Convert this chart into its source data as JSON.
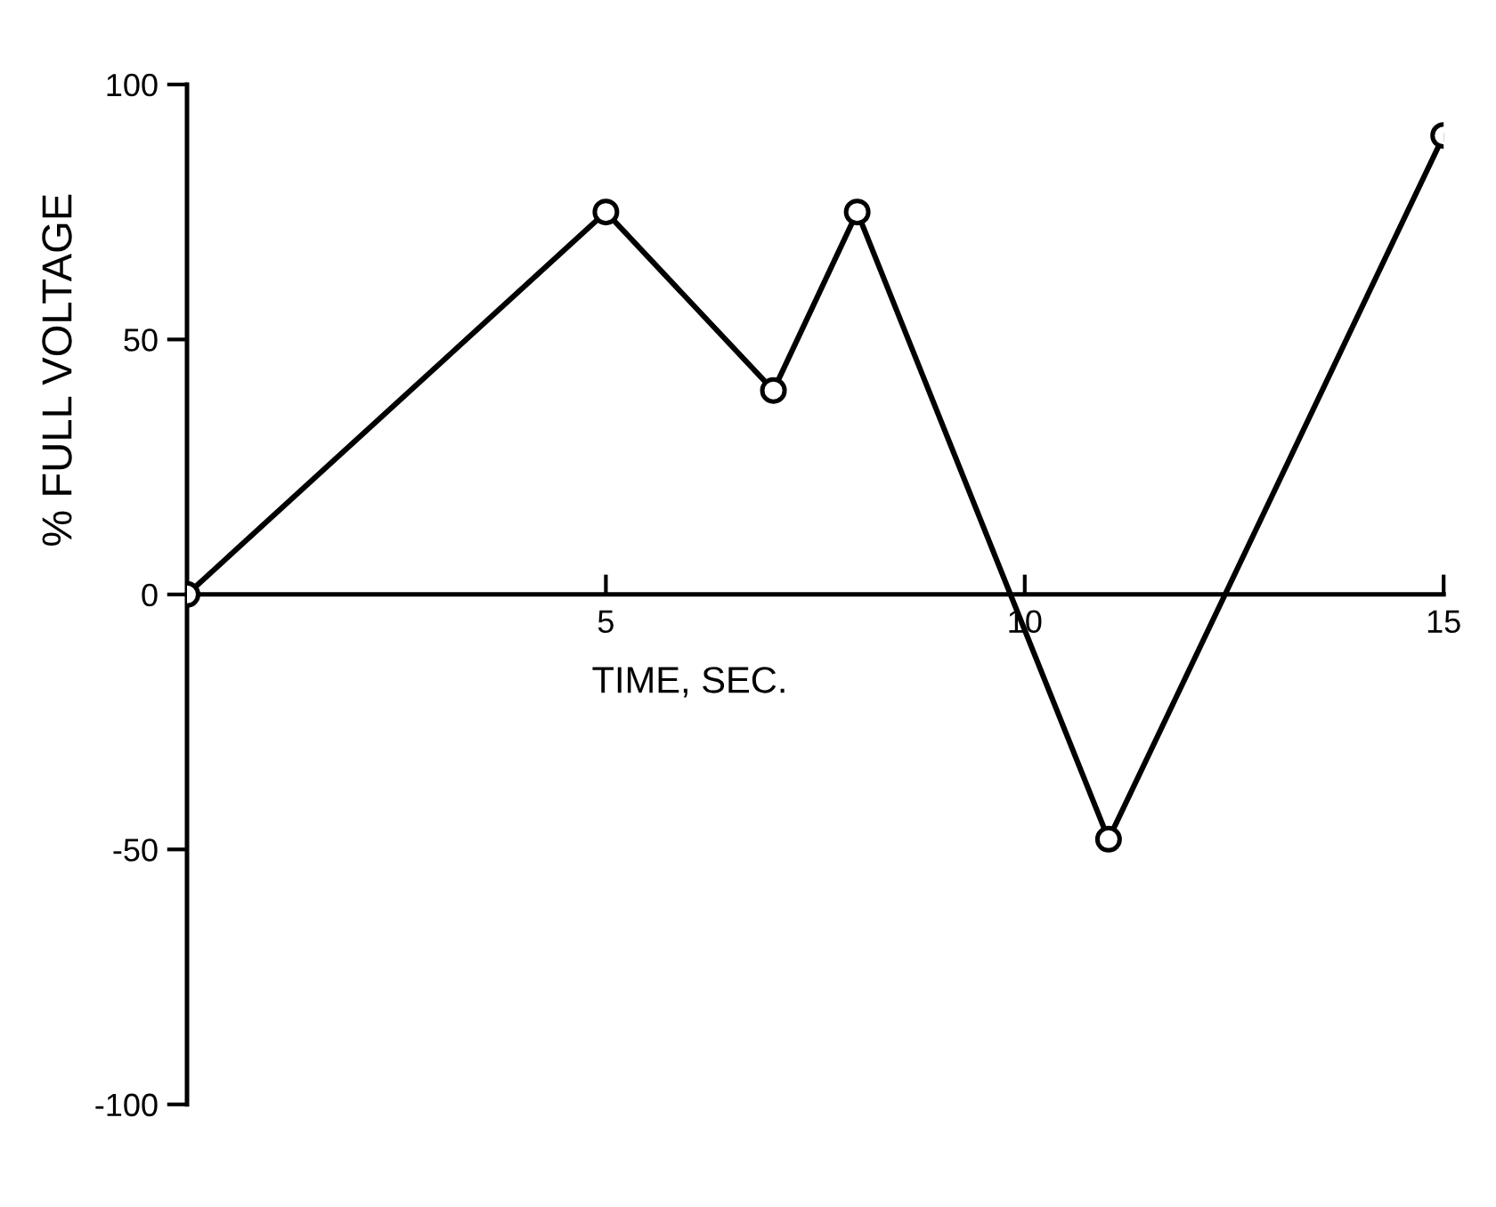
{
  "chart_data": {
    "type": "line",
    "xlabel": "TIME, SEC.",
    "ylabel": "% FULL VOLTAGE",
    "x": [
      0,
      5,
      7,
      8,
      11,
      15
    ],
    "series": [
      {
        "color": "#000000",
        "values": [
          0,
          75,
          40,
          75,
          -48,
          90
        ]
      }
    ],
    "xlim": [
      0,
      15
    ],
    "xticks": [
      5,
      10,
      15
    ],
    "ylim": [
      -100,
      100
    ],
    "yticks": [
      -100,
      -50,
      0,
      50,
      100
    ],
    "marker": "circle",
    "line_style": "solid",
    "grid": false
  }
}
